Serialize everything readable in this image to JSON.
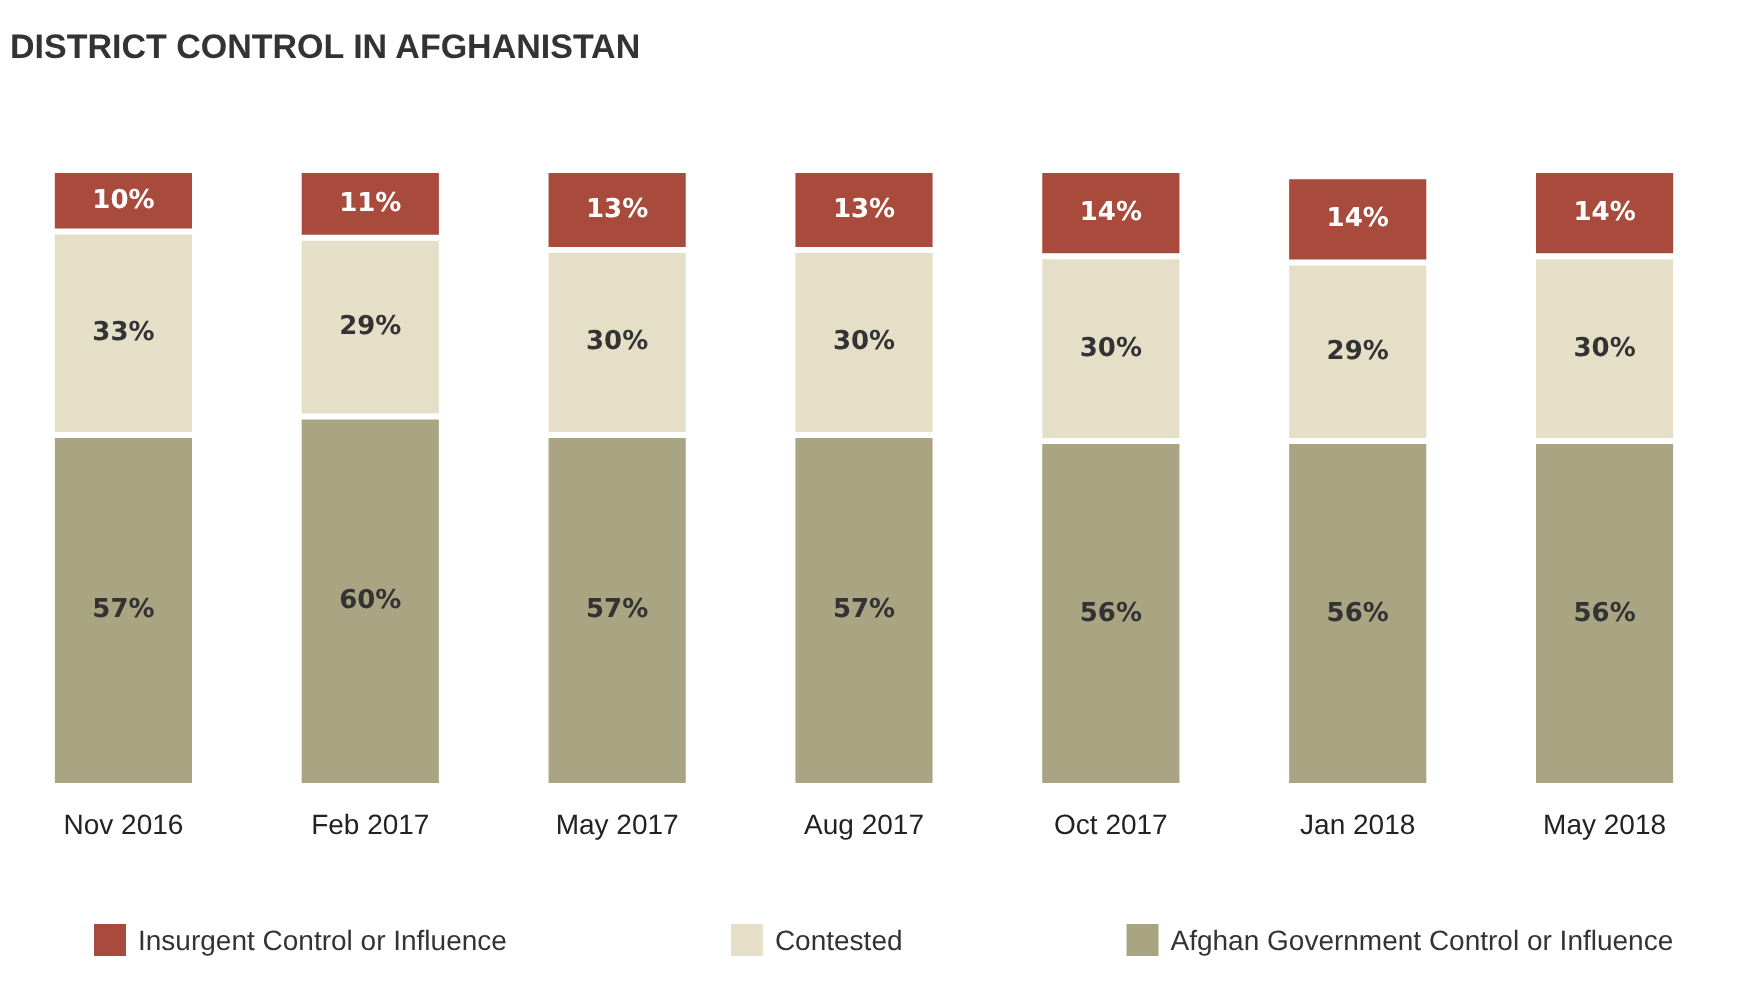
{
  "chart_data": {
    "type": "bar",
    "title": "DISTRICT CONTROL IN AFGHANISTAN",
    "categories": [
      "Nov 2016",
      "Feb 2017",
      "May 2017",
      "Aug 2017",
      "Oct 2017",
      "Jan 2018",
      "May 2018"
    ],
    "stacked": true,
    "legend": "bottom",
    "series": [
      {
        "name": "Afghan Government Control or Influence",
        "color": "#a9a482",
        "values": [
          57,
          60,
          57,
          57,
          56,
          56,
          56
        ],
        "value_labels": [
          "57%",
          "60%",
          "57%",
          "57%",
          "56%",
          "56%",
          "56%"
        ]
      },
      {
        "name": "Contested",
        "color": "#e5dfc8",
        "values": [
          33,
          29,
          30,
          30,
          30,
          29,
          30
        ],
        "value_labels": [
          "33%",
          "29%",
          "30%",
          "30%",
          "30%",
          "29%",
          "30%"
        ]
      },
      {
        "name": "Insurgent Control or Influence",
        "color": "#a84a3c",
        "values": [
          10,
          11,
          13,
          13,
          14,
          14,
          14
        ],
        "value_labels": [
          "10%",
          "11%",
          "13%",
          "13%",
          "14%",
          "14%",
          "14%"
        ]
      }
    ]
  }
}
